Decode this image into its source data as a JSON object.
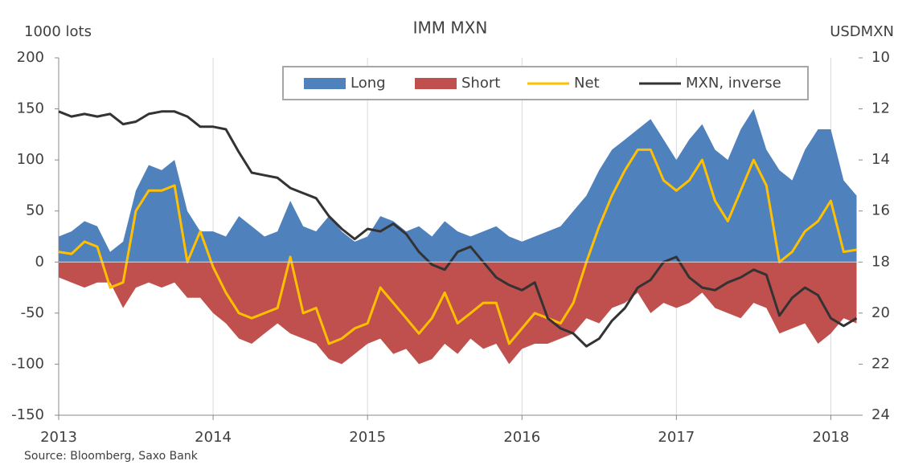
{
  "chart_data": {
    "type": "area-line",
    "title": "IMM MXN",
    "y_label": "1000 lots",
    "y2_label": "USDMXN",
    "source": "Source: Bloomberg, Saxo Bank",
    "x": [
      2013,
      2013.083,
      2013.167,
      2013.25,
      2013.333,
      2013.417,
      2013.5,
      2013.583,
      2013.667,
      2013.75,
      2013.833,
      2013.917,
      2014,
      2014.083,
      2014.167,
      2014.25,
      2014.333,
      2014.417,
      2014.5,
      2014.583,
      2014.667,
      2014.75,
      2014.833,
      2014.917,
      2015,
      2015.083,
      2015.167,
      2015.25,
      2015.333,
      2015.417,
      2015.5,
      2015.583,
      2015.667,
      2015.75,
      2015.833,
      2015.917,
      2016,
      2016.083,
      2016.167,
      2016.25,
      2016.333,
      2016.417,
      2016.5,
      2016.583,
      2016.667,
      2016.75,
      2016.833,
      2016.917,
      2017,
      2017.083,
      2017.167,
      2017.25,
      2017.333,
      2017.417,
      2017.5,
      2017.583,
      2017.667,
      2017.75,
      2017.833,
      2017.917,
      2018,
      2018.083,
      2018.167
    ],
    "series": [
      {
        "name": "Long",
        "kind": "area",
        "color": "#4f81bd",
        "values": [
          25,
          30,
          40,
          35,
          10,
          20,
          70,
          95,
          90,
          100,
          50,
          30,
          30,
          25,
          45,
          35,
          25,
          30,
          60,
          35,
          30,
          45,
          30,
          20,
          25,
          45,
          40,
          30,
          35,
          25,
          40,
          30,
          25,
          30,
          35,
          25,
          20,
          25,
          30,
          35,
          50,
          65,
          90,
          110,
          120,
          130,
          140,
          120,
          100,
          120,
          135,
          110,
          100,
          130,
          150,
          110,
          90,
          80,
          110,
          130,
          130,
          80,
          65
        ]
      },
      {
        "name": "Short",
        "kind": "area",
        "color": "#c0504d",
        "values": [
          -15,
          -20,
          -25,
          -20,
          -20,
          -45,
          -25,
          -20,
          -25,
          -20,
          -35,
          -35,
          -50,
          -60,
          -75,
          -80,
          -70,
          -60,
          -70,
          -75,
          -80,
          -95,
          -100,
          -90,
          -80,
          -75,
          -90,
          -85,
          -100,
          -95,
          -80,
          -90,
          -75,
          -85,
          -80,
          -100,
          -85,
          -80,
          -80,
          -75,
          -70,
          -55,
          -60,
          -45,
          -40,
          -30,
          -50,
          -40,
          -45,
          -40,
          -30,
          -45,
          -50,
          -55,
          -40,
          -45,
          -70,
          -65,
          -60,
          -80,
          -70,
          -55,
          -60
        ]
      },
      {
        "name": "Net",
        "kind": "line",
        "color": "#ffc000",
        "values": [
          10,
          8,
          20,
          15,
          -25,
          -20,
          50,
          70,
          70,
          75,
          0,
          30,
          -5,
          -30,
          -50,
          -55,
          -50,
          -45,
          5,
          -50,
          -45,
          -80,
          -75,
          -65,
          -60,
          -25,
          -40,
          -55,
          -70,
          -55,
          -30,
          -60,
          -50,
          -40,
          -40,
          -80,
          -65,
          -50,
          -55,
          -60,
          -40,
          0,
          35,
          65,
          90,
          110,
          110,
          80,
          70,
          80,
          100,
          60,
          40,
          70,
          100,
          75,
          0,
          10,
          30,
          40,
          60,
          10,
          12
        ]
      },
      {
        "name": "MXN, inverse",
        "kind": "line",
        "axis": "y2",
        "color": "#333333",
        "values": [
          12.1,
          12.3,
          12.2,
          12.3,
          12.2,
          12.6,
          12.5,
          12.2,
          12.1,
          12.1,
          12.3,
          12.7,
          12.7,
          12.8,
          13.7,
          14.5,
          14.6,
          14.7,
          15.1,
          15.3,
          15.5,
          16.2,
          16.7,
          17.1,
          16.7,
          16.8,
          16.5,
          16.9,
          17.6,
          18.1,
          18.3,
          17.6,
          17.4,
          18.0,
          18.6,
          18.9,
          19.1,
          18.8,
          20.2,
          20.6,
          20.8,
          21.3,
          21.0,
          20.3,
          19.8,
          19.0,
          18.7,
          18.0,
          17.8,
          18.6,
          19.0,
          19.1,
          18.8,
          18.6,
          18.3,
          18.5,
          20.1,
          19.4,
          19.0,
          19.3,
          20.2,
          20.5,
          20.2
        ]
      }
    ],
    "xlim": [
      2013,
      2018.18
    ],
    "xticks": [
      2013,
      2014,
      2015,
      2016,
      2017,
      2018
    ],
    "ylim": [
      -150,
      200
    ],
    "yticks": [
      200,
      150,
      100,
      50,
      0,
      -50,
      -100,
      -150
    ],
    "y2lim": [
      24,
      10
    ],
    "y2ticks": [
      10,
      12,
      14,
      16,
      18,
      20,
      22,
      24
    ],
    "xgrid": true,
    "legend": "top"
  }
}
